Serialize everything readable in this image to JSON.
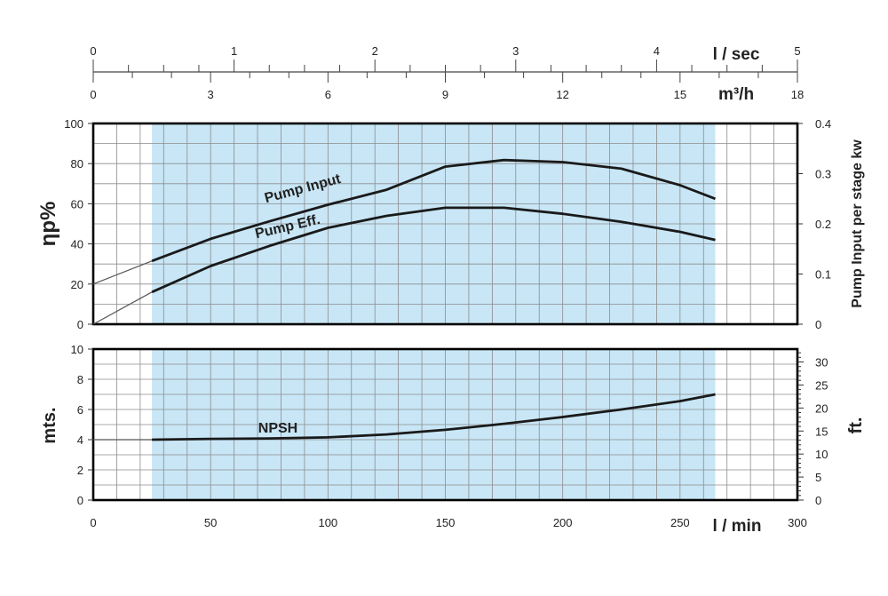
{
  "chart_data": {
    "type": "line",
    "top_scales": {
      "lsec": {
        "label": "l / sec",
        "range": [
          0,
          5
        ],
        "ticks": [
          "0",
          "1",
          "2",
          "3",
          "4",
          "5"
        ]
      },
      "m3h": {
        "label": "m³/h",
        "range": [
          0,
          18
        ],
        "ticks": [
          "0",
          "3",
          "6",
          "9",
          "12",
          "15",
          "18"
        ]
      }
    },
    "x_axis": {
      "label": "l / min",
      "range": [
        0,
        300
      ],
      "ticks": [
        "0",
        "50",
        "100",
        "150",
        "200",
        "250",
        "300"
      ]
    },
    "upper_chart": {
      "y_left": {
        "label": "ηp%",
        "range": [
          0,
          100
        ],
        "ticks": [
          "0",
          "20",
          "40",
          "60",
          "80",
          "100"
        ]
      },
      "y_right": {
        "label": "Pump Input per stage kw",
        "range": [
          0,
          0.4
        ],
        "ticks": [
          "0",
          "0.1",
          "0.2",
          "0.3",
          "0.4"
        ]
      },
      "shaded_range": [
        25,
        265
      ],
      "series": [
        {
          "name": "Pump Input",
          "axis": "right",
          "x": [
            0,
            25,
            50,
            75,
            100,
            125,
            150,
            175,
            200,
            225,
            250,
            265
          ],
          "values": [
            0.08,
            0.126,
            0.17,
            0.205,
            0.238,
            0.268,
            0.314,
            0.327,
            0.323,
            0.31,
            0.277,
            0.25
          ]
        },
        {
          "name": "Pump Eff.",
          "axis": "left",
          "x": [
            0,
            25,
            50,
            75,
            100,
            125,
            150,
            175,
            200,
            225,
            250,
            265
          ],
          "values": [
            0,
            16,
            29,
            39,
            48,
            54,
            58,
            58,
            55,
            51,
            46,
            42
          ]
        }
      ]
    },
    "lower_chart": {
      "y_left": {
        "label": "mts.",
        "range": [
          0,
          10
        ],
        "ticks": [
          "0",
          "2",
          "4",
          "6",
          "8",
          "10"
        ]
      },
      "y_right": {
        "label": "ft.",
        "range": [
          0,
          32.8
        ],
        "ticks": [
          "0",
          "5",
          "10",
          "15",
          "20",
          "25",
          "30"
        ]
      },
      "shaded_range": [
        25,
        265
      ],
      "series": [
        {
          "name": "NPSH",
          "x": [
            0,
            25,
            50,
            75,
            100,
            125,
            150,
            175,
            200,
            225,
            250,
            265
          ],
          "values": [
            4.0,
            4.0,
            4.05,
            4.08,
            4.15,
            4.35,
            4.65,
            5.05,
            5.5,
            6.0,
            6.55,
            7.0
          ]
        }
      ]
    },
    "grid": true,
    "colors": {
      "shade": "#c8e6f6",
      "grid": "#8c8c8c",
      "curve": "#1a1a1a",
      "frame": "#000000"
    }
  }
}
